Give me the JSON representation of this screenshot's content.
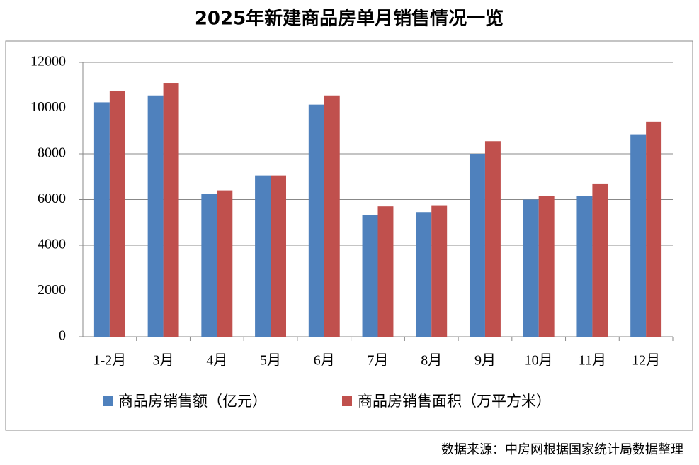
{
  "chart_data": {
    "type": "bar",
    "title": "2025年新建商品房单月销售情况一览",
    "categories": [
      "1-2月",
      "3月",
      "4月",
      "5月",
      "6月",
      "7月",
      "8月",
      "9月",
      "10月",
      "11月",
      "12月"
    ],
    "series": [
      {
        "name": "商品房销售额（亿元）",
        "color": "#4f81bd",
        "values": [
          10250,
          10550,
          6250,
          7050,
          10150,
          5330,
          5450,
          8000,
          6000,
          6150,
          8850
        ]
      },
      {
        "name": "商品房销售面积（万平方米）",
        "color": "#c0504d",
        "values": [
          10750,
          11100,
          6400,
          7050,
          10550,
          5700,
          5750,
          8550,
          6150,
          6700,
          9400
        ]
      }
    ],
    "ylim": [
      0,
      12000
    ],
    "yticks": [
      0,
      2000,
      4000,
      6000,
      8000,
      10000,
      12000
    ],
    "grid": true,
    "legend": "bottom",
    "source": "数据来源：中房网根据国家统计局数据整理"
  }
}
